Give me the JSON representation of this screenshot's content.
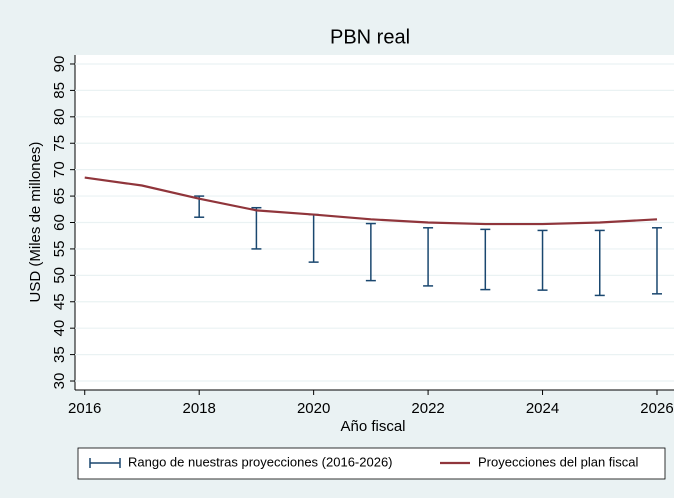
{
  "chart_data": {
    "type": "rangecap_line",
    "title": "PBN real",
    "x_label": "Año fiscal",
    "y_label": "USD (Miles de millones)",
    "x": [
      2016,
      2017,
      2018,
      2019,
      2020,
      2021,
      2022,
      2023,
      2024,
      2025,
      2026
    ],
    "series": [
      {
        "name": "Rango de nuestras proyecciones (2016-2026)",
        "color": "#1a476f",
        "low": [
          null,
          null,
          61,
          55,
          52.5,
          49,
          48,
          47.3,
          47.2,
          46.2,
          46.5
        ],
        "high": [
          null,
          null,
          65,
          62.8,
          61.5,
          59.8,
          59,
          58.7,
          58.5,
          58.5,
          59
        ]
      },
      {
        "name": "Proyecciones del plan fiscal",
        "color": "#90353b",
        "values": [
          68.5,
          67,
          64.5,
          62.3,
          61.5,
          60.6,
          60,
          59.7,
          59.7,
          60,
          60.6
        ]
      }
    ],
    "xlim": [
      2015.83,
      2026.14
    ],
    "xticks": [
      2016,
      2018,
      2020,
      2022,
      2024,
      2026
    ],
    "ylim": [
      28.3,
      91.7
    ],
    "yticks": [
      30,
      35,
      40,
      45,
      50,
      55,
      60,
      65,
      70,
      75,
      80,
      85,
      90
    ],
    "grid": true
  }
}
